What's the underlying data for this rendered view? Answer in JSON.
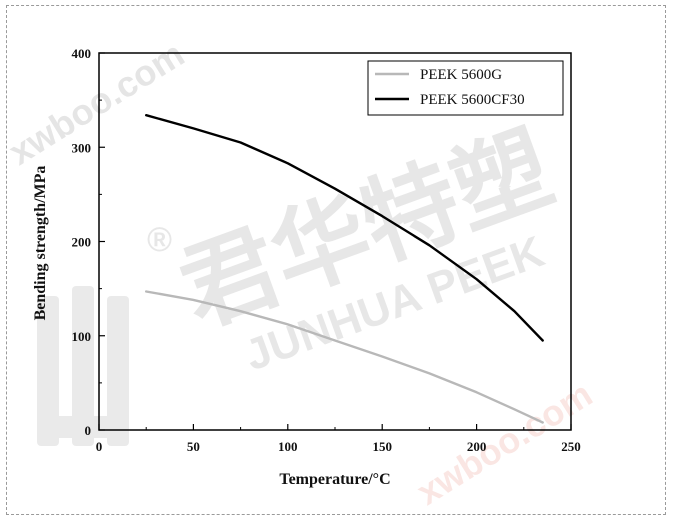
{
  "chart_data": {
    "type": "line",
    "xlabel": "Temperature/°C",
    "ylabel": "Bending strength/MPa",
    "xlim": [
      0,
      250
    ],
    "ylim": [
      0,
      400
    ],
    "xticks": [
      0,
      50,
      100,
      150,
      200,
      250
    ],
    "yticks": [
      0,
      100,
      200,
      300,
      400
    ],
    "x_tick_labels": [
      "0",
      "50",
      "100",
      "150",
      "200",
      "250"
    ],
    "y_tick_labels": [
      "0",
      "100",
      "200",
      "300",
      "400"
    ],
    "grid": false,
    "legend_position": "top-right",
    "series": [
      {
        "name": "PEEK 5600G",
        "color": "#b8b8b8",
        "points": [
          [
            25,
            147
          ],
          [
            50,
            138
          ],
          [
            75,
            126
          ],
          [
            100,
            112
          ],
          [
            125,
            95
          ],
          [
            150,
            78
          ],
          [
            175,
            60
          ],
          [
            200,
            40
          ],
          [
            220,
            22
          ],
          [
            235,
            8
          ]
        ]
      },
      {
        "name": "PEEK 5600CF30",
        "color": "#000000",
        "points": [
          [
            25,
            334
          ],
          [
            50,
            320
          ],
          [
            75,
            305
          ],
          [
            100,
            283
          ],
          [
            125,
            256
          ],
          [
            150,
            227
          ],
          [
            175,
            196
          ],
          [
            200,
            160
          ],
          [
            220,
            126
          ],
          [
            235,
            95
          ]
        ]
      }
    ]
  },
  "watermarks": {
    "site_text": "xwboo.com",
    "brand_cn": "君华特塑",
    "brand_en": "JUNHUA PEEK",
    "registered": "®"
  }
}
